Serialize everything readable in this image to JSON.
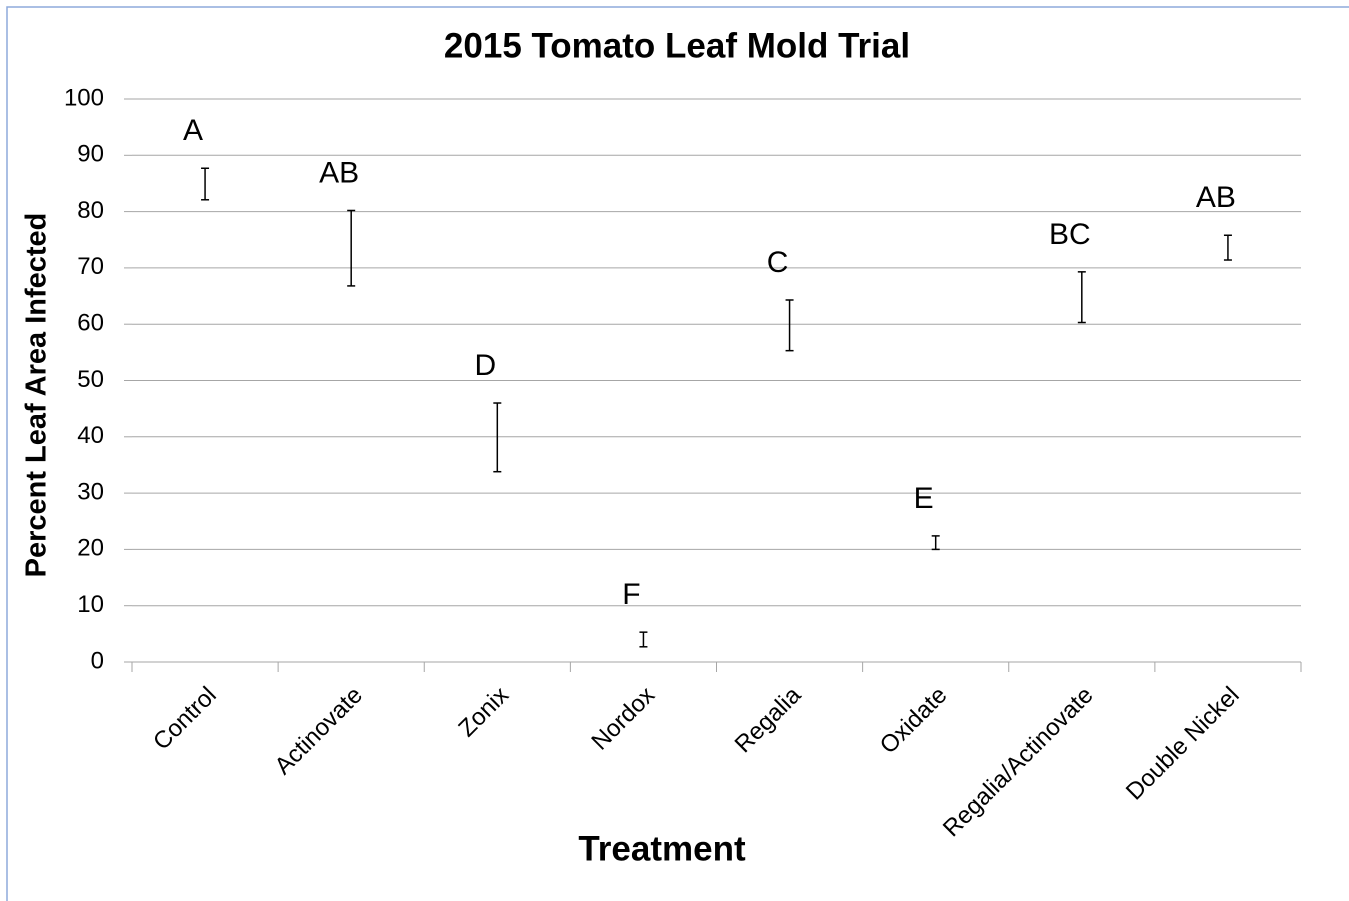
{
  "chart_data": {
    "type": "errorbar",
    "title": "2015 Tomato Leaf Mold Trial",
    "x_label": "Treatment",
    "y_label": "Percent Leaf Area Infected",
    "categories": [
      "Control",
      "Actinovate",
      "Zonix",
      "Nordox",
      "Regalia",
      "Oxidate",
      "Regalia/Actinovate",
      "Double Nickel"
    ],
    "values": [
      84.9,
      73.5,
      39.9,
      4,
      59.8,
      21.2,
      64.8,
      73.6
    ],
    "errors": [
      2.8,
      6.7,
      6.1,
      1.3,
      4.5,
      1.2,
      4.5,
      2.2
    ],
    "annotations": [
      "A",
      "AB",
      "D",
      "F",
      "C",
      "E",
      "BC",
      "AB"
    ],
    "color": "#000000",
    "ylim": [
      0,
      100
    ],
    "yticks": [
      0,
      10,
      20,
      30,
      40,
      50,
      60,
      70,
      80,
      90,
      100
    ],
    "grid": true
  }
}
